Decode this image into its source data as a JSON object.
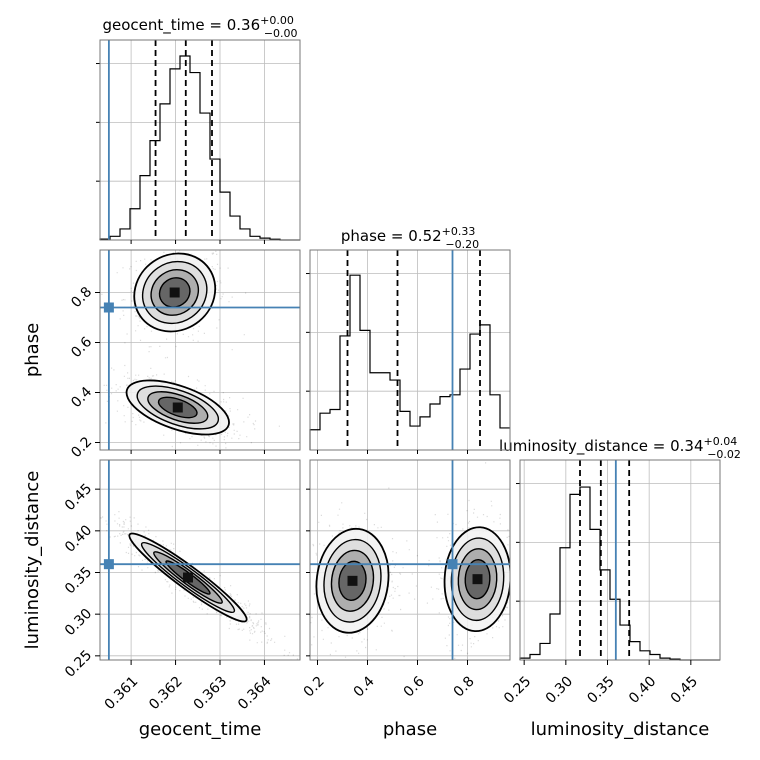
{
  "chart_data": {
    "type": "corner",
    "parameters": [
      "geocent_time",
      "phase",
      "luminosity_distance"
    ],
    "titles": [
      {
        "param": "geocent_time",
        "text": "geocent_time = 0.36",
        "plus": "+0.00",
        "minus": "−0.00"
      },
      {
        "param": "phase",
        "text": "phase = 0.52",
        "plus": "+0.33",
        "minus": "−0.20"
      },
      {
        "param": "luminosity_distance",
        "text": "luminosity_distance = 0.34",
        "plus": "+0.04",
        "minus": "−0.02"
      }
    ],
    "axis_labels": {
      "x": [
        "geocent_time",
        "phase",
        "luminosity_distance"
      ],
      "y": [
        "phase",
        "luminosity_distance"
      ]
    },
    "ranges": {
      "geocent_time": [
        0.3603,
        0.3648
      ],
      "phase": [
        0.17,
        0.97
      ],
      "luminosity_distance": [
        0.245,
        0.485
      ]
    },
    "ticks": {
      "geocent_time": [
        "0.361",
        "0.362",
        "0.363",
        "0.364"
      ],
      "phase": [
        "0.2",
        "0.4",
        "0.6",
        "0.8"
      ],
      "luminosity_distance": [
        "0.25",
        "0.30",
        "0.35",
        "0.40",
        "0.45"
      ]
    },
    "truth": {
      "geocent_time": 0.3605,
      "phase": 0.74,
      "luminosity_distance": 0.36
    },
    "quantiles": {
      "geocent_time": [
        0.36155,
        0.36223,
        0.36282
      ],
      "phase": [
        0.32,
        0.52,
        0.85
      ],
      "luminosity_distance": [
        0.317,
        0.342,
        0.376
      ]
    },
    "histograms": {
      "geocent_time": {
        "bins": [
          0.3603,
          0.3648
        ],
        "counts": [
          0.005,
          0.02,
          0.06,
          0.17,
          0.35,
          0.54,
          0.74,
          0.93,
          1.0,
          0.91,
          0.69,
          0.44,
          0.26,
          0.13,
          0.06,
          0.02,
          0.01,
          0.004,
          0,
          0
        ]
      },
      "phase": {
        "bins": [
          0.17,
          0.97
        ],
        "counts": [
          0.11,
          0.2,
          0.22,
          0.62,
          0.95,
          0.65,
          0.42,
          0.42,
          0.38,
          0.21,
          0.13,
          0.18,
          0.25,
          0.29,
          0.3,
          0.44,
          0.63,
          0.68,
          0.3,
          0.12
        ]
      },
      "luminosity_distance": {
        "bins": [
          0.245,
          0.485
        ],
        "counts": [
          0.01,
          0.03,
          0.09,
          0.25,
          0.61,
          0.9,
          0.94,
          0.71,
          0.49,
          0.33,
          0.19,
          0.1,
          0.05,
          0.03,
          0.01,
          0.005,
          0,
          0,
          0,
          0
        ]
      }
    },
    "pairs": [
      {
        "x": "geocent_time",
        "y": "phase",
        "modes": [
          {
            "center": [
              0.36198,
              0.8
            ],
            "sx": 0.00038,
            "sy": 0.065,
            "rho": 0.1,
            "weight": 0.45
          },
          {
            "center": [
              0.36205,
              0.34
            ],
            "sx": 0.00048,
            "sy": 0.045,
            "rho": -0.55,
            "weight": 0.55
          }
        ]
      },
      {
        "x": "geocent_time",
        "y": "luminosity_distance",
        "modes": [
          {
            "center": [
              0.36228,
              0.344
            ],
            "sx": 0.00055,
            "sy": 0.022,
            "rho": -0.95,
            "weight": 1
          }
        ]
      },
      {
        "x": "phase",
        "y": "luminosity_distance",
        "modes": [
          {
            "center": [
              0.34,
              0.34
            ],
            "sx": 0.06,
            "sy": 0.026,
            "rho": 0.1,
            "weight": 0.5
          },
          {
            "center": [
              0.84,
              0.342
            ],
            "sx": 0.055,
            "sy": 0.026,
            "rho": 0.05,
            "weight": 0.5
          }
        ]
      }
    ],
    "grid": true,
    "truth_color": "#4682b4"
  }
}
